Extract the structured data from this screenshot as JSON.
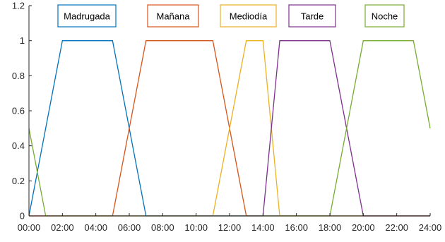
{
  "chart_data": {
    "type": "line",
    "title": "",
    "xlabel": "",
    "ylabel": "",
    "xlim": [
      0,
      24
    ],
    "ylim": [
      0,
      1.2
    ],
    "xticks": [
      0,
      2,
      4,
      6,
      8,
      10,
      12,
      14,
      16,
      18,
      20,
      22,
      24
    ],
    "xtick_labels": [
      "00:00",
      "02:00",
      "04:00",
      "06:00",
      "08:00",
      "10:00",
      "12:00",
      "14:00",
      "16:00",
      "18:00",
      "20:00",
      "22:00",
      "24:00"
    ],
    "yticks": [
      0,
      0.2,
      0.4,
      0.6,
      0.8,
      1,
      1.2
    ],
    "ytick_labels": [
      "0",
      "0.2",
      "0.4",
      "0.6",
      "0.8",
      "1",
      "1.2"
    ],
    "grid": false,
    "legend_placement": "top, above each curve",
    "series": [
      {
        "name": "Madrugada",
        "color": "#0072BD",
        "points": [
          [
            0,
            0
          ],
          [
            2,
            1
          ],
          [
            5,
            1
          ],
          [
            7,
            0
          ],
          [
            24,
            0
          ]
        ]
      },
      {
        "name": "Mañana",
        "color": "#D95319",
        "points": [
          [
            0,
            0
          ],
          [
            5,
            0
          ],
          [
            7,
            1
          ],
          [
            11,
            1
          ],
          [
            13,
            0
          ],
          [
            24,
            0
          ]
        ]
      },
      {
        "name": "Mediodía",
        "color": "#EDB120",
        "points": [
          [
            0,
            0
          ],
          [
            11,
            0
          ],
          [
            13,
            1
          ],
          [
            14,
            1
          ],
          [
            15,
            0
          ],
          [
            24,
            0
          ]
        ]
      },
      {
        "name": "Tarde",
        "color": "#7E2F8E",
        "points": [
          [
            0,
            0
          ],
          [
            14,
            0
          ],
          [
            15,
            1
          ],
          [
            18,
            1
          ],
          [
            20,
            0
          ],
          [
            24,
            0
          ]
        ]
      },
      {
        "name": "Noche",
        "color": "#77AC30",
        "points": [
          [
            0,
            0.5
          ],
          [
            1,
            0
          ],
          [
            18,
            0
          ],
          [
            20,
            1
          ],
          [
            23,
            1
          ],
          [
            24,
            0.5
          ]
        ]
      }
    ]
  }
}
